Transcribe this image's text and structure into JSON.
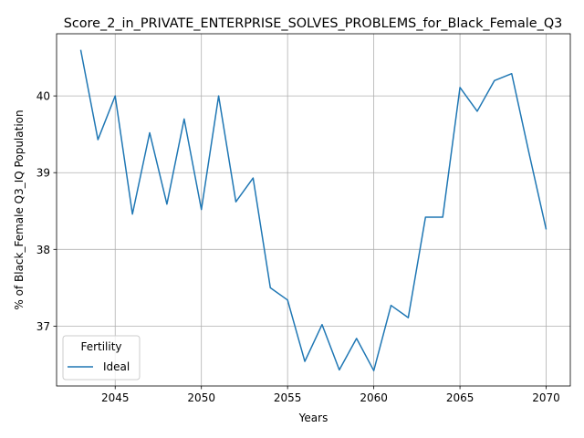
{
  "chart_data": {
    "type": "line",
    "title": "Score_2_in_PRIVATE_ENTERPRISE_SOLVES_PROBLEMS_for_Black_Female_Q3",
    "xlabel": "Years",
    "ylabel": "% of Black_Female Q3_IQ Population",
    "xlim": [
      2041.6,
      2071.4
    ],
    "ylim": [
      36.22,
      40.81
    ],
    "x_ticks": [
      2045,
      2050,
      2055,
      2060,
      2065,
      2070
    ],
    "y_ticks": [
      37,
      38,
      39,
      40
    ],
    "grid": true,
    "legend": {
      "title": "Fertility",
      "placement": "lower-left"
    },
    "series": [
      {
        "name": "Ideal",
        "color": "#1f77b4",
        "x": [
          2043,
          2044,
          2045,
          2046,
          2047,
          2048,
          2049,
          2050,
          2051,
          2052,
          2053,
          2054,
          2055,
          2056,
          2057,
          2058,
          2059,
          2060,
          2061,
          2062,
          2063,
          2064,
          2065,
          2066,
          2067,
          2068,
          2069,
          2070
        ],
        "y": [
          40.6,
          39.43,
          40.0,
          38.46,
          39.52,
          38.59,
          39.7,
          38.52,
          40.0,
          38.62,
          38.93,
          37.5,
          37.34,
          36.54,
          37.02,
          36.43,
          36.84,
          36.42,
          37.27,
          37.11,
          38.42,
          38.42,
          40.11,
          39.8,
          40.2,
          40.29,
          39.26,
          38.26
        ]
      }
    ]
  }
}
